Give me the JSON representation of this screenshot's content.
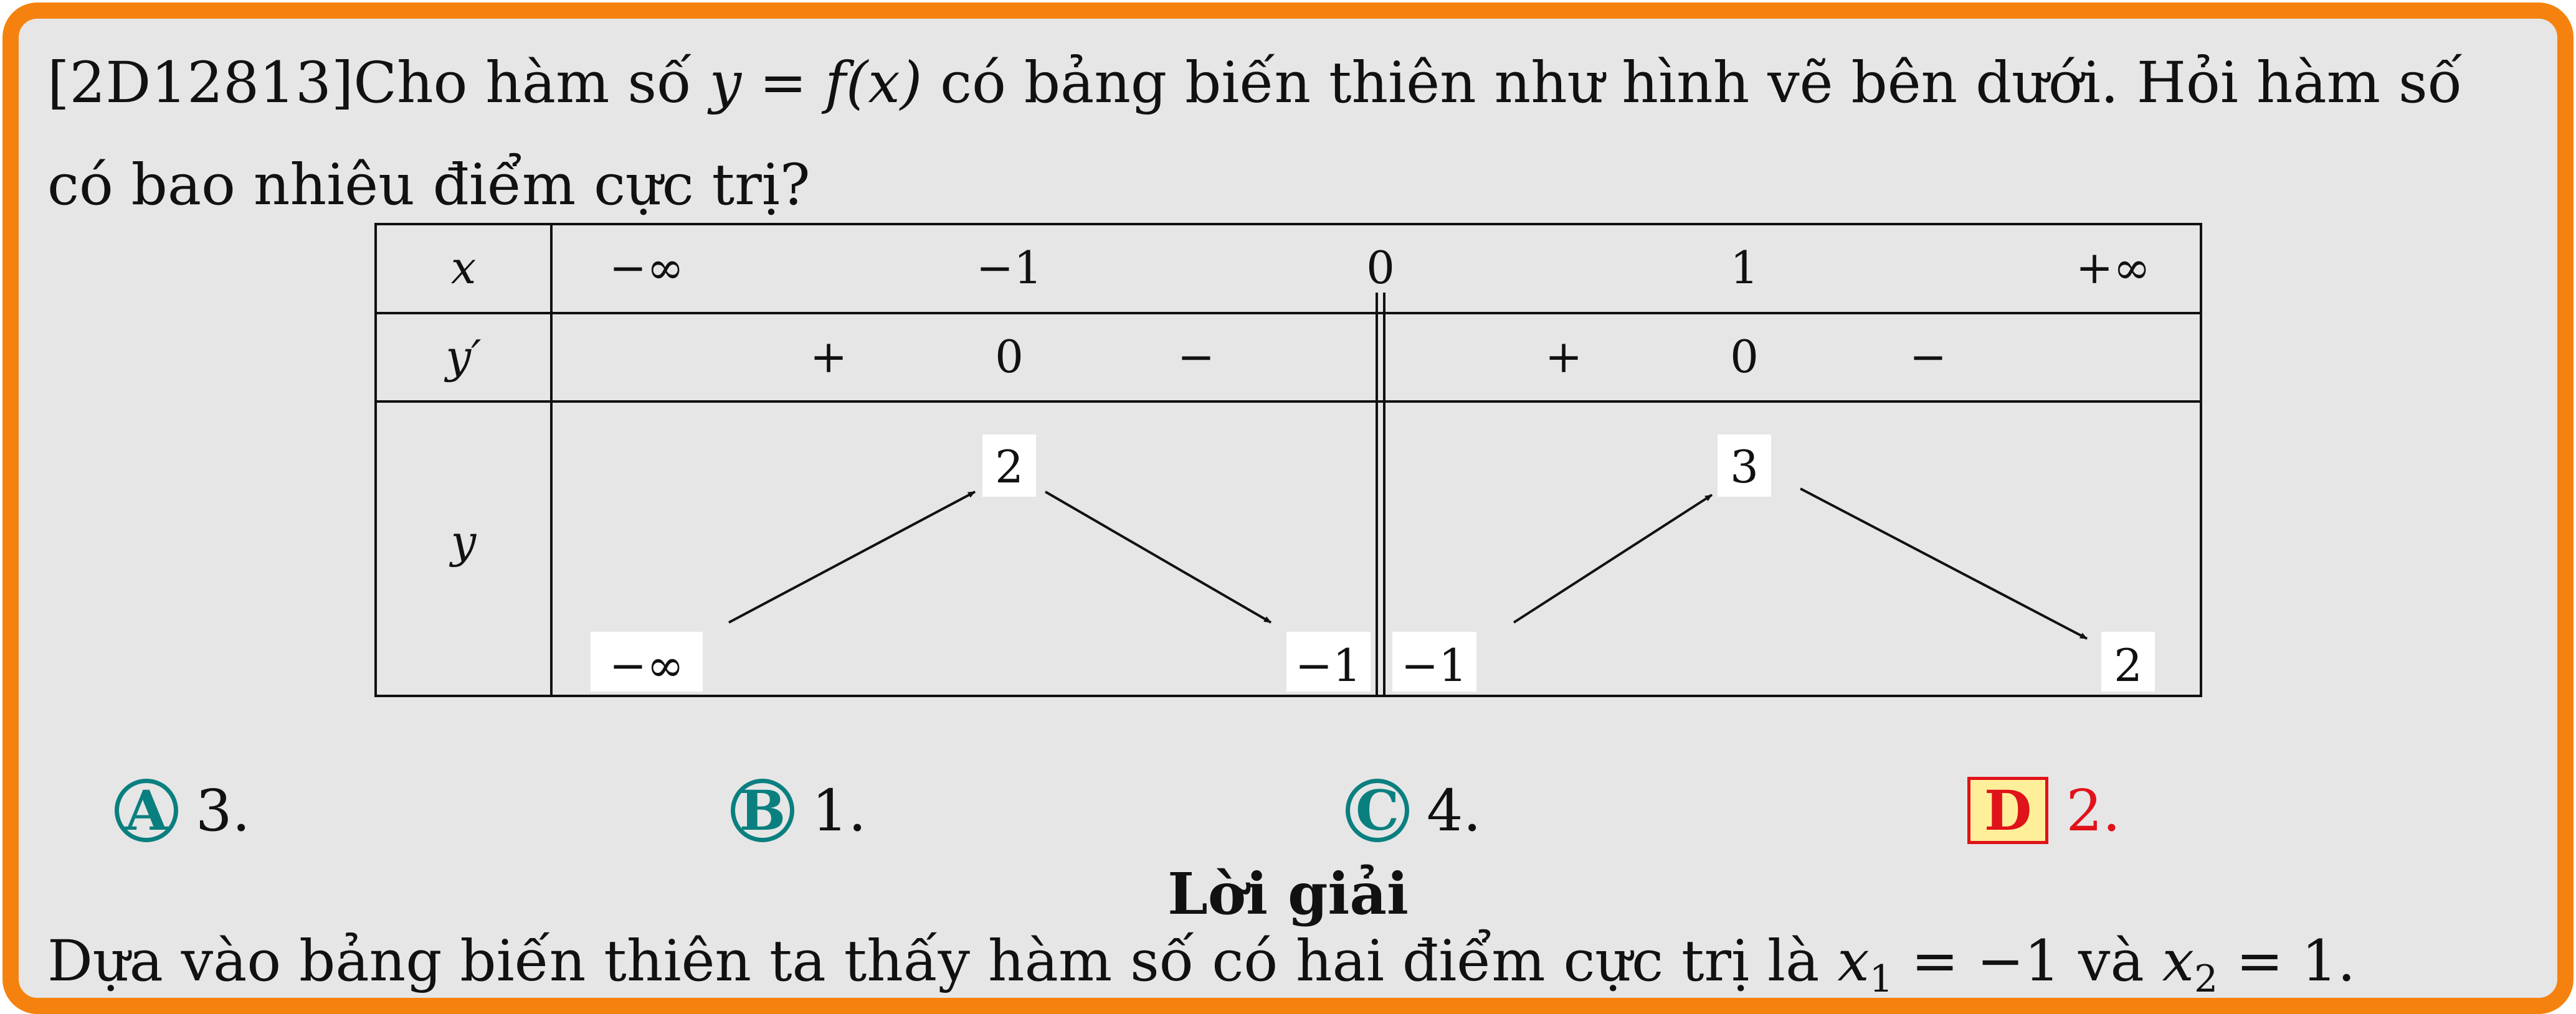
{
  "question": {
    "code": "[2D12813]",
    "text_before": "Cho hàm số ",
    "math": "y = f(x)",
    "text_after": " có bảng biến thiên như hình vẽ bên dưới. Hỏi hàm số có bao nhiêu điểm cực trị?"
  },
  "table": {
    "row_labels": [
      "x",
      "y′",
      "y"
    ],
    "x_values": [
      "−∞",
      "−1",
      "0",
      "1",
      "+∞"
    ],
    "derivative_signs": [
      "+",
      "0",
      "−",
      "+",
      "0",
      "−"
    ],
    "y_values": [
      "−∞",
      "2",
      "−1",
      "−1",
      "3",
      "2"
    ]
  },
  "choices": [
    {
      "letter": "A",
      "text": "3."
    },
    {
      "letter": "B",
      "text": "1."
    },
    {
      "letter": "C",
      "text": "4."
    },
    {
      "letter": "D",
      "text": "2."
    }
  ],
  "solution": {
    "title": "Lời giải",
    "text_before": "Dựa vào bảng biến thiên ta thấy hàm số có hai điểm cực trị là ",
    "x1": "x",
    "x1_sub": "1",
    "x1_eq": " = −1",
    "and": " và ",
    "x2": "x",
    "x2_sub": "2",
    "x2_eq": " = 1."
  },
  "colors": {
    "border": "#f5820f",
    "background": "#e6e6e6",
    "choice_teal": "#0a7f7f",
    "answer_red": "#e0121a",
    "answer_fill": "#ffef9a"
  }
}
